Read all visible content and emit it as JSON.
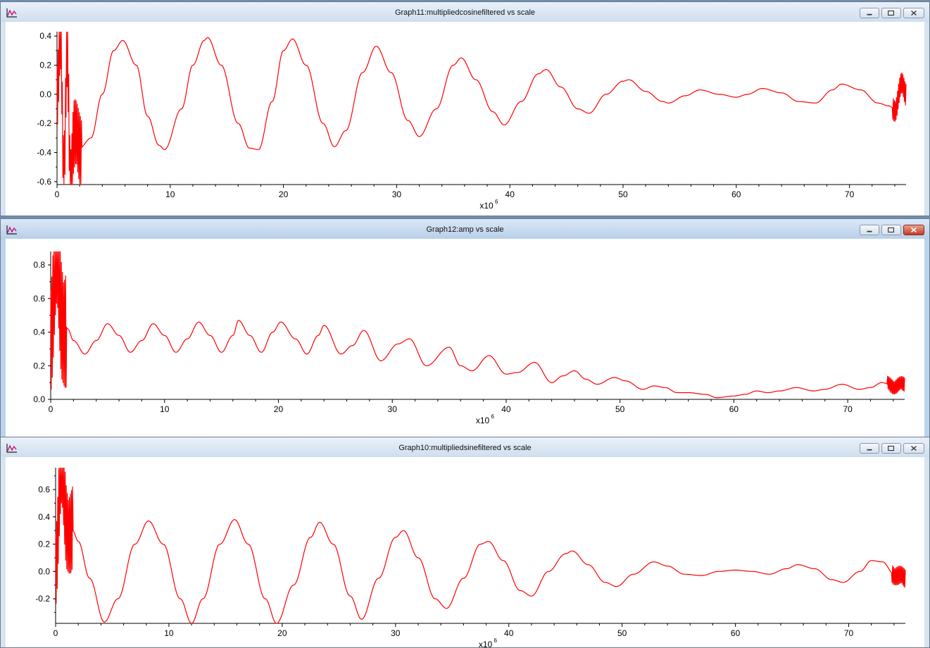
{
  "desktop": {
    "background": "#6e8fae"
  },
  "trace_color": "#ff0000",
  "windows": [
    {
      "title": "Graph11:multipliedcosinefiltered vs scale",
      "app_icon": "graph-icon",
      "controls": [
        "minimize-icon",
        "maximize-icon",
        "close-icon"
      ],
      "chart_data": {
        "type": "line",
        "title": "",
        "xlabel": "",
        "ylabel": "",
        "x_multiplier": {
          "base": "x10",
          "exponent": "6"
        },
        "xlim": [
          0,
          75
        ],
        "ylim": [
          -0.62,
          0.43
        ],
        "x_ticks": [
          0,
          10,
          20,
          30,
          40,
          50,
          60,
          70
        ],
        "x_tick_labels": [
          "0",
          "10",
          "20",
          "30",
          "40",
          "50",
          "60",
          "70"
        ],
        "y_ticks": [
          0.4,
          0.2,
          0.0,
          -0.2,
          -0.4,
          -0.6
        ],
        "y_tick_labels": [
          "0.4",
          "0.2",
          "0.0",
          "-0.2",
          "-0.4",
          "-0.6"
        ],
        "grid": false,
        "series": [
          {
            "x": [
              0,
              0.3,
              0.6,
              0.9,
              1.2,
              1.5,
              2,
              3,
              4,
              5,
              5.8,
              7,
              8,
              9,
              9.5,
              11,
              12,
              13,
              13.3,
              14.5,
              16,
              17,
              17.8,
              19,
              20,
              20.8,
              22,
              23.5,
              24.5,
              25.5,
              27,
              28.2,
              29.5,
              31,
              32,
              33.5,
              35,
              35.7,
              37,
              38.5,
              39.5,
              41,
              42.5,
              43.2,
              44.5,
              46,
              47,
              48.5,
              50,
              50.5,
              52,
              53.5,
              54,
              55.5,
              56.8,
              58.5,
              60,
              61,
              62.3,
              64,
              65.5,
              67,
              68.5,
              69.3,
              71,
              72.5,
              73.5,
              74,
              74.6,
              75
            ],
            "y": [
              0.05,
              0.42,
              -0.6,
              0.3,
              -0.55,
              -0.3,
              -0.37,
              -0.3,
              0.0,
              0.3,
              0.37,
              0.2,
              -0.15,
              -0.35,
              -0.38,
              -0.1,
              0.2,
              0.37,
              0.39,
              0.2,
              -0.2,
              -0.37,
              -0.38,
              -0.05,
              0.3,
              0.38,
              0.2,
              -0.2,
              -0.36,
              -0.25,
              0.15,
              0.33,
              0.15,
              -0.18,
              -0.29,
              -0.1,
              0.2,
              0.25,
              0.1,
              -0.12,
              -0.21,
              -0.05,
              0.14,
              0.17,
              0.05,
              -0.1,
              -0.13,
              0.0,
              0.09,
              0.1,
              0.02,
              -0.05,
              -0.06,
              -0.01,
              0.03,
              0.0,
              -0.02,
              0.0,
              0.04,
              0.01,
              -0.05,
              -0.06,
              0.03,
              0.07,
              0.03,
              -0.06,
              -0.08,
              -0.1,
              0.06,
              0.0
            ],
            "noise_regions": [
              [
                0,
                2.2,
                0.28
              ],
              [
                73.8,
                75,
                0.09
              ]
            ]
          }
        ]
      }
    },
    {
      "title": "Graph12:amp vs scale",
      "app_icon": "graph-icon",
      "controls": [
        "minimize-icon",
        "maximize-icon",
        "close-icon"
      ],
      "chart_data": {
        "type": "line",
        "title": "",
        "xlabel": "",
        "ylabel": "",
        "x_multiplier": {
          "base": "x10",
          "exponent": "6"
        },
        "xlim": [
          0,
          75
        ],
        "ylim": [
          0,
          0.88
        ],
        "x_ticks": [
          0,
          10,
          20,
          30,
          40,
          50,
          60,
          70
        ],
        "x_tick_labels": [
          "0",
          "10",
          "20",
          "30",
          "40",
          "50",
          "60",
          "70"
        ],
        "y_ticks": [
          0.8,
          0.6,
          0.4,
          0.2,
          0.0
        ],
        "y_tick_labels": [
          "0.8",
          "0.6",
          "0.4",
          "0.2",
          "0.0"
        ],
        "grid": false,
        "series": [
          {
            "x": [
              0,
              0.5,
              1,
              1.5,
              2,
              3,
              4,
              5,
              6,
              7,
              8,
              9,
              10,
              11,
              12,
              13,
              14,
              15,
              16,
              16.5,
              17.5,
              18.5,
              19.5,
              20.2,
              21.5,
              22.5,
              23.5,
              24,
              25.5,
              26.5,
              27.5,
              29,
              30.5,
              31.5,
              33,
              35,
              36,
              37,
              38.5,
              40,
              41,
              42.5,
              44,
              45,
              46,
              47,
              48,
              49.5,
              50.5,
              52,
              53,
              54,
              55,
              56,
              57.5,
              58.5,
              60,
              61,
              62,
              63,
              64,
              65.5,
              67,
              68,
              69.5,
              71,
              72,
              73,
              74,
              75
            ],
            "y": [
              0.45,
              0.8,
              0.5,
              0.42,
              0.35,
              0.27,
              0.35,
              0.45,
              0.38,
              0.28,
              0.35,
              0.45,
              0.38,
              0.28,
              0.36,
              0.46,
              0.38,
              0.28,
              0.38,
              0.47,
              0.38,
              0.28,
              0.4,
              0.46,
              0.36,
              0.27,
              0.38,
              0.44,
              0.27,
              0.32,
              0.41,
              0.23,
              0.33,
              0.36,
              0.2,
              0.31,
              0.2,
              0.17,
              0.26,
              0.15,
              0.16,
              0.22,
              0.1,
              0.14,
              0.17,
              0.12,
              0.09,
              0.13,
              0.11,
              0.06,
              0.08,
              0.07,
              0.04,
              0.04,
              0.03,
              0.01,
              0.02,
              0.03,
              0.05,
              0.04,
              0.05,
              0.07,
              0.05,
              0.06,
              0.09,
              0.06,
              0.07,
              0.1,
              0.08,
              0.09
            ],
            "noise_regions": [
              [
                0,
                1.4,
                0.4
              ],
              [
                73.5,
                75,
                0.05
              ]
            ]
          }
        ]
      }
    },
    {
      "title": "Graph10:multipliedsinefiltered vs scale",
      "app_icon": "graph-icon",
      "controls": [
        "minimize-icon",
        "maximize-icon",
        "close-icon"
      ],
      "chart_data": {
        "type": "line",
        "title": "",
        "xlabel": "",
        "ylabel": "",
        "x_multiplier": {
          "base": "x10",
          "exponent": "6"
        },
        "xlim": [
          0,
          75
        ],
        "ylim": [
          -0.38,
          0.76
        ],
        "x_ticks": [
          0,
          10,
          20,
          30,
          40,
          50,
          60,
          70
        ],
        "x_tick_labels": [
          "0",
          "10",
          "20",
          "30",
          "40",
          "50",
          "60",
          "70"
        ],
        "y_ticks": [
          0.6,
          0.4,
          0.2,
          0.0,
          -0.2
        ],
        "y_tick_labels": [
          "0.6",
          "0.4",
          "0.2",
          "0.0",
          "-0.2"
        ],
        "grid": false,
        "series": [
          {
            "x": [
              0,
              0.5,
              1,
              1.5,
              2,
              3,
              4.3,
              5.5,
              7,
              8.2,
              9.5,
              11,
              12,
              13,
              14.5,
              15.8,
              17,
              18.5,
              19.5,
              21,
              22.5,
              23.3,
              24.5,
              26,
              27,
              28.5,
              30,
              30.7,
              32,
              33.5,
              34.5,
              36,
              37.5,
              38.2,
              39.5,
              41,
              42,
              43.5,
              45,
              45.6,
              47,
              48.5,
              49.5,
              51,
              52.8,
              54,
              55.5,
              57,
              58.5,
              60,
              61.5,
              63,
              64.5,
              65.5,
              67,
              68.5,
              69.5,
              71,
              72,
              73,
              74,
              75
            ],
            "y": [
              0.1,
              0.7,
              0.35,
              0.3,
              0.22,
              -0.05,
              -0.37,
              -0.2,
              0.2,
              0.37,
              0.2,
              -0.2,
              -0.38,
              -0.2,
              0.2,
              0.38,
              0.2,
              -0.2,
              -0.38,
              -0.1,
              0.25,
              0.36,
              0.2,
              -0.18,
              -0.35,
              -0.05,
              0.25,
              0.3,
              0.1,
              -0.2,
              -0.27,
              -0.05,
              0.2,
              0.22,
              0.08,
              -0.14,
              -0.18,
              0.0,
              0.13,
              0.15,
              0.05,
              -0.08,
              -0.11,
              -0.02,
              0.07,
              0.04,
              -0.02,
              -0.03,
              0.0,
              0.01,
              0.0,
              -0.02,
              0.02,
              0.05,
              0.02,
              -0.06,
              -0.08,
              0.0,
              0.08,
              0.07,
              -0.02,
              -0.05
            ],
            "noise_regions": [
              [
                0,
                1.5,
                0.35
              ],
              [
                73.8,
                75,
                0.08
              ]
            ]
          }
        ]
      }
    }
  ]
}
